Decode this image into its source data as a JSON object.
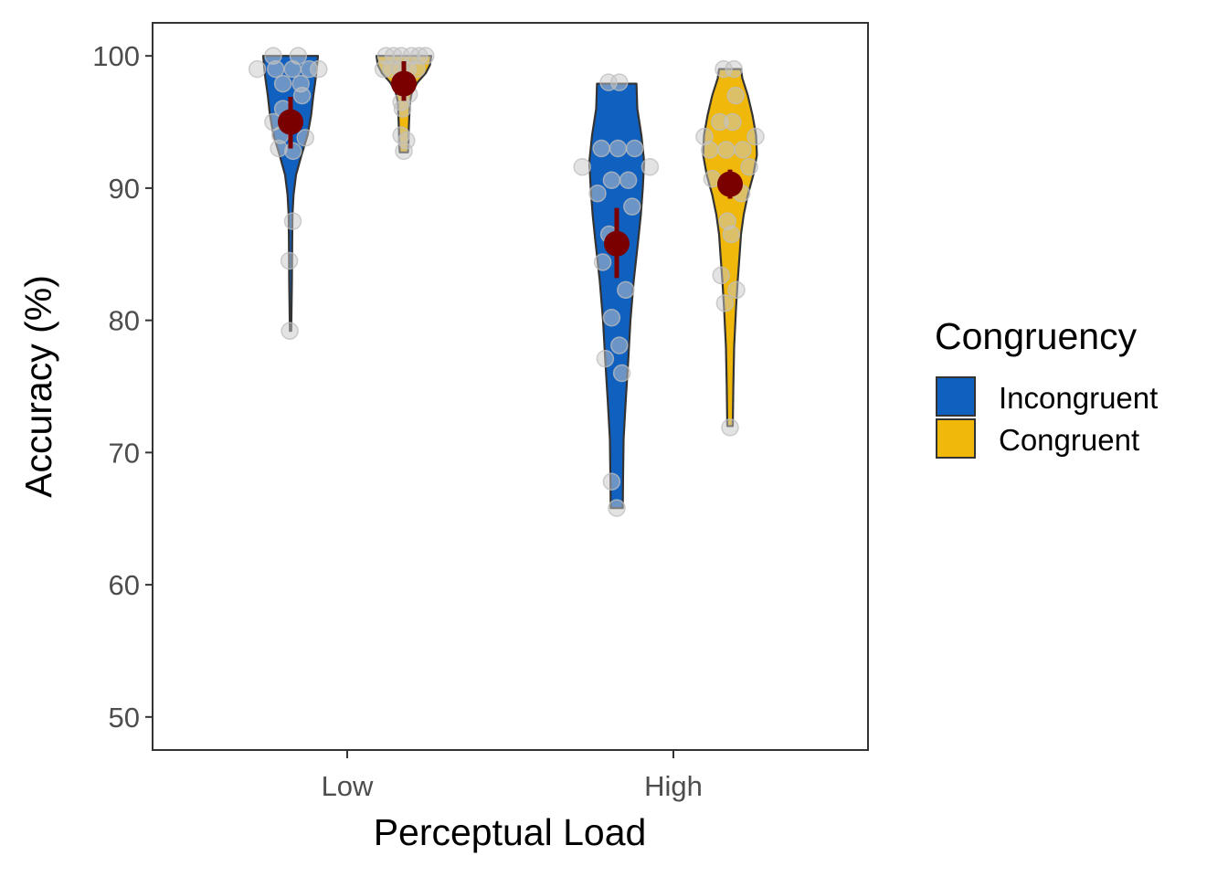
{
  "chart_data": {
    "type": "violin",
    "xlabel": "Perceptual Load",
    "ylabel": "Accuracy (%)",
    "ylim": [
      47.5,
      102.5
    ],
    "yticks": [
      50,
      60,
      70,
      80,
      90,
      100
    ],
    "categories": [
      "Low",
      "High"
    ],
    "grid": false,
    "legend": {
      "title": "Congruency",
      "position": "right",
      "entries": [
        {
          "label": "Incongruent",
          "color": "#1060c0"
        },
        {
          "label": "Congruent",
          "color": "#f0b80a"
        }
      ]
    },
    "series": [
      {
        "name": "Incongruent",
        "color": "#1060c0",
        "groups": [
          {
            "category": "Low",
            "mean": 95.0,
            "ci": [
              93.0,
              96.9
            ],
            "range": [
              79.2,
              100
            ],
            "density": [
              [
                79.2,
                0.025
              ],
              [
                80,
                0.03
              ],
              [
                83,
                0.05
              ],
              [
                86,
                0.06
              ],
              [
                88,
                0.07
              ],
              [
                89.5,
                0.11
              ],
              [
                91,
                0.2
              ],
              [
                92.5,
                0.4
              ],
              [
                94,
                0.62
              ],
              [
                95.5,
                0.75
              ],
              [
                97,
                0.83
              ],
              [
                98.5,
                0.93
              ],
              [
                100,
                1.0
              ]
            ],
            "points": [
              [
                100,
                -0.68
              ],
              [
                100,
                0.3
              ],
              [
                99,
                -1.3
              ],
              [
                99,
                -0.58
              ],
              [
                99,
                0.08
              ],
              [
                99,
                0.73
              ],
              [
                99,
                1.1
              ],
              [
                97.9,
                -0.3
              ],
              [
                97.9,
                0.4
              ],
              [
                97,
                0.45
              ],
              [
                96,
                -0.3
              ],
              [
                95,
                -0.68
              ],
              [
                95,
                -0.1
              ],
              [
                94,
                -0.4
              ],
              [
                93.8,
                0.58
              ],
              [
                93,
                -0.46
              ],
              [
                92.8,
                0.1
              ],
              [
                87.5,
                0.09
              ],
              [
                84.5,
                -0.05
              ],
              [
                79.2,
                -0.03
              ]
            ]
          },
          {
            "category": "High",
            "mean": 85.8,
            "ci": [
              83.2,
              88.5
            ],
            "range": [
              65.8,
              97.9
            ],
            "density": [
              [
                65.8,
                0.22
              ],
              [
                68,
                0.23
              ],
              [
                71,
                0.25
              ],
              [
                74,
                0.33
              ],
              [
                77,
                0.42
              ],
              [
                80,
                0.5
              ],
              [
                83,
                0.62
              ],
              [
                86,
                0.78
              ],
              [
                88,
                0.88
              ],
              [
                90,
                0.95
              ],
              [
                92,
                1.0
              ],
              [
                94,
                0.9
              ],
              [
                96,
                0.75
              ],
              [
                97.9,
                0.72
              ]
            ],
            "points": [
              [
                98,
                -0.32
              ],
              [
                98,
                0.1
              ],
              [
                93,
                -0.6
              ],
              [
                93,
                0.05
              ],
              [
                93,
                0.7
              ],
              [
                91.6,
                -1.35
              ],
              [
                91.6,
                1.3
              ],
              [
                90.6,
                -0.2
              ],
              [
                90.6,
                0.45
              ],
              [
                89.6,
                -0.75
              ],
              [
                88.6,
                0.6
              ],
              [
                86.5,
                -0.3
              ],
              [
                84.4,
                -0.55
              ],
              [
                82.3,
                0.35
              ],
              [
                80.2,
                -0.2
              ],
              [
                78.1,
                0.1
              ],
              [
                77.1,
                -0.45
              ],
              [
                76,
                0.2
              ],
              [
                67.8,
                -0.2
              ],
              [
                65.8,
                0.0
              ]
            ]
          }
        ]
      },
      {
        "name": "Congruent",
        "color": "#f0b80a",
        "groups": [
          {
            "category": "Low",
            "mean": 97.9,
            "ci": [
              96.6,
              99.6
            ],
            "range": [
              92.7,
              100
            ],
            "density": [
              [
                92.7,
                0.15
              ],
              [
                93.5,
                0.17
              ],
              [
                94.5,
                0.18
              ],
              [
                95.5,
                0.2
              ],
              [
                96.5,
                0.22
              ],
              [
                97.3,
                0.3
              ],
              [
                98,
                0.5
              ],
              [
                98.7,
                0.8
              ],
              [
                99.3,
                0.95
              ],
              [
                100,
                1.0
              ]
            ],
            "points": [
              [
                100,
                -0.7
              ],
              [
                100,
                -0.4
              ],
              [
                100,
                -0.1
              ],
              [
                100,
                0.3
              ],
              [
                100,
                0.6
              ],
              [
                100,
                0.85
              ],
              [
                99,
                -0.8
              ],
              [
                99,
                -0.5
              ],
              [
                99,
                -0.15
              ],
              [
                99,
                0.15
              ],
              [
                99,
                0.5
              ],
              [
                98.2,
                -0.1
              ],
              [
                97.1,
                0.2
              ],
              [
                96.5,
                -0.1
              ],
              [
                96,
                -0.05
              ],
              [
                94,
                -0.1
              ],
              [
                93.6,
                0.1
              ],
              [
                92.8,
                0.0
              ]
            ]
          },
          {
            "category": "High",
            "mean": 90.3,
            "ci": [
              89.2,
              91.4
            ],
            "range": [
              72.0,
              99.0
            ],
            "density": [
              [
                72,
                0.1
              ],
              [
                75,
                0.12
              ],
              [
                78,
                0.15
              ],
              [
                81,
                0.22
              ],
              [
                83,
                0.28
              ],
              [
                85,
                0.35
              ],
              [
                86.5,
                0.4
              ],
              [
                88,
                0.5
              ],
              [
                89.5,
                0.65
              ],
              [
                91,
                0.85
              ],
              [
                92.5,
                0.98
              ],
              [
                94,
                0.95
              ],
              [
                95.5,
                0.82
              ],
              [
                97,
                0.65
              ],
              [
                98.3,
                0.45
              ],
              [
                99,
                0.4
              ]
            ],
            "points": [
              [
                99,
                -0.25
              ],
              [
                99,
                0.15
              ],
              [
                97,
                0.22
              ],
              [
                95,
                -0.4
              ],
              [
                95,
                0.1
              ],
              [
                93.9,
                -1.0
              ],
              [
                93.9,
                1.0
              ],
              [
                92.9,
                -0.8
              ],
              [
                92.9,
                -0.15
              ],
              [
                92.9,
                0.5
              ],
              [
                91.6,
                0.75
              ],
              [
                90.7,
                -0.7
              ],
              [
                89.6,
                0.45
              ],
              [
                87.5,
                -0.1
              ],
              [
                86.5,
                0.05
              ],
              [
                83.4,
                -0.35
              ],
              [
                82.3,
                0.25
              ],
              [
                81.3,
                -0.2
              ],
              [
                71.9,
                0.0
              ]
            ]
          }
        ]
      }
    ]
  }
}
